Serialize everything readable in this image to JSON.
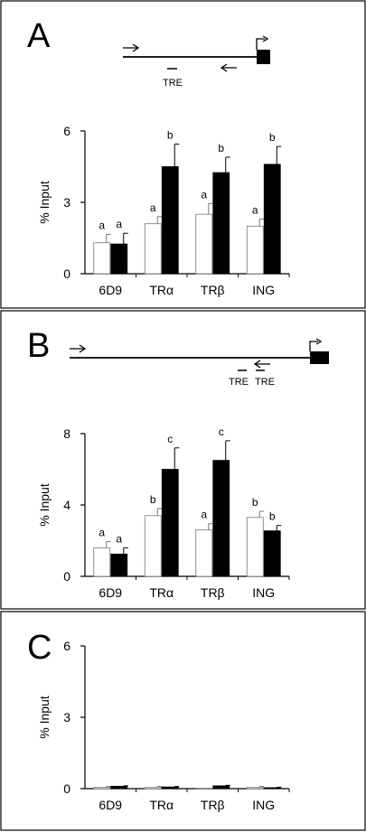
{
  "panels": [
    {
      "label": "A",
      "diagram": {
        "tre_labels": [
          "TRE"
        ]
      },
      "chart_data": {
        "type": "bar",
        "categories": [
          "6D9",
          "TRα",
          "TRβ",
          "ING"
        ],
        "series": [
          {
            "values": [
              1.3,
              2.1,
              2.5,
              2.0
            ],
            "errors": [
              0.35,
              0.3,
              0.45,
              0.3
            ],
            "letters": [
              "a",
              "a",
              "a",
              "a"
            ],
            "color": "#ffffff"
          },
          {
            "values": [
              1.25,
              4.5,
              4.25,
              4.6
            ],
            "errors": [
              0.45,
              0.95,
              0.65,
              0.75
            ],
            "letters": [
              "a",
              "b",
              "b",
              "b"
            ],
            "color": "#000000"
          }
        ],
        "ylabel": "% Input",
        "ylim": [
          0,
          6
        ],
        "yticks": [
          "0",
          "3",
          "6"
        ],
        "grid": false
      }
    },
    {
      "label": "B",
      "diagram": {
        "tre_labels": [
          "TRE",
          "TRE"
        ]
      },
      "chart_data": {
        "type": "bar",
        "categories": [
          "6D9",
          "TRα",
          "TRβ",
          "ING"
        ],
        "series": [
          {
            "values": [
              1.6,
              3.4,
              2.6,
              3.3
            ],
            "errors": [
              0.35,
              0.4,
              0.35,
              0.35
            ],
            "letters": [
              "a",
              "b",
              "a",
              "b"
            ],
            "color": "#ffffff"
          },
          {
            "values": [
              1.25,
              6.0,
              6.5,
              2.55
            ],
            "errors": [
              0.35,
              1.2,
              1.1,
              0.3
            ],
            "letters": [
              "a",
              "c",
              "c",
              "b"
            ],
            "color": "#000000"
          }
        ],
        "ylabel": "% Input",
        "ylim": [
          0,
          8
        ],
        "yticks": [
          "0",
          "4",
          "8"
        ],
        "grid": false
      }
    },
    {
      "label": "C",
      "diagram": null,
      "chart_data": {
        "type": "bar",
        "categories": [
          "6D9",
          "TRα",
          "TRβ",
          "ING"
        ],
        "series": [
          {
            "values": [
              0.05,
              0.05,
              0.0,
              0.05
            ],
            "errors": [
              0.04,
              0.04,
              0.0,
              0.04
            ],
            "letters": [
              "",
              "",
              "",
              ""
            ],
            "color": "#ffffff"
          },
          {
            "values": [
              0.1,
              0.07,
              0.12,
              0.04
            ],
            "errors": [
              0.02,
              0.02,
              0.02,
              0.02
            ],
            "letters": [
              "",
              "",
              "",
              ""
            ],
            "color": "#000000"
          }
        ],
        "ylabel": "% Input",
        "ylim": [
          0,
          6
        ],
        "yticks": [
          "0",
          "3",
          "6"
        ],
        "grid": false
      }
    }
  ]
}
